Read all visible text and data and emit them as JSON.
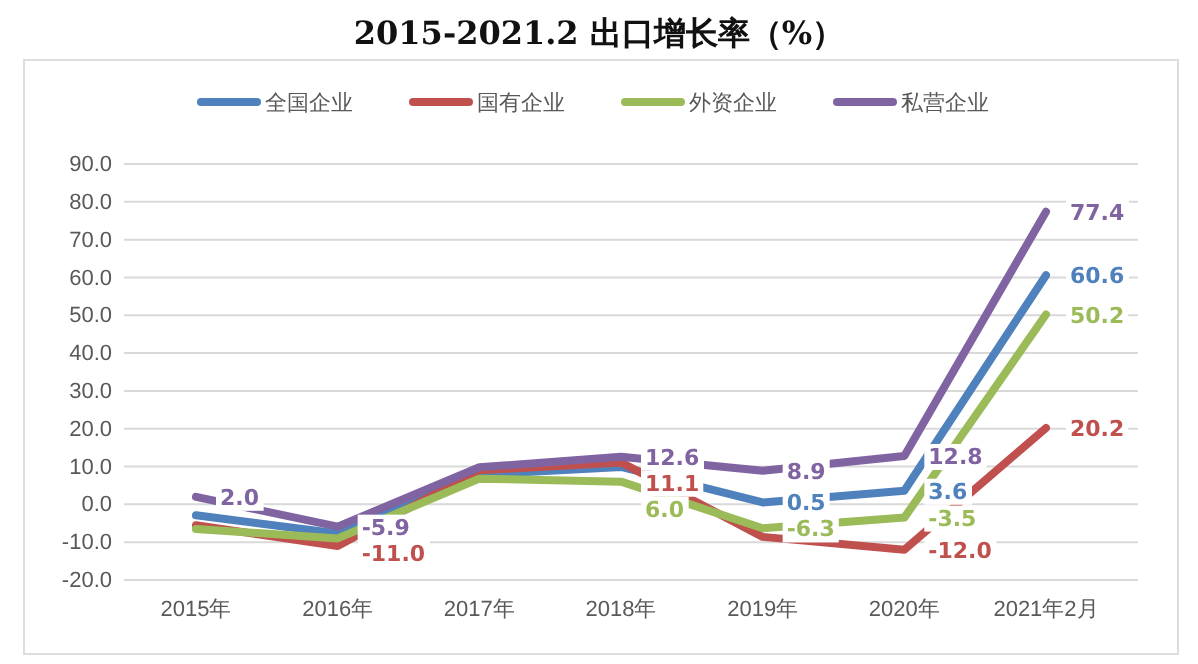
{
  "chart_data": {
    "type": "line",
    "title": "2015-2021.2 出口增长率（%）",
    "categories": [
      "2015年",
      "2016年",
      "2017年",
      "2018年",
      "2019年",
      "2020年",
      "2021年2月"
    ],
    "series": [
      {
        "name": "全国企业",
        "color": "#4f81bd",
        "values": [
          -2.9,
          -7.7,
          7.9,
          9.9,
          0.5,
          3.6,
          60.6
        ],
        "value_labels": [
          null,
          null,
          null,
          null,
          "0.5",
          "3.6",
          "60.6"
        ]
      },
      {
        "name": "国有企业",
        "color": "#c0504d",
        "values": [
          -5.5,
          -11.0,
          9.0,
          11.1,
          -8.6,
          -12.0,
          20.2
        ],
        "value_labels": [
          null,
          "-11.0",
          null,
          "11.1",
          null,
          "-12.0",
          "20.2"
        ]
      },
      {
        "name": "外资企业",
        "color": "#9bbb59",
        "values": [
          -6.5,
          -9.0,
          6.8,
          6.0,
          -6.3,
          -3.5,
          50.2
        ],
        "value_labels": [
          null,
          null,
          null,
          "6.0",
          "-6.3",
          "-3.5",
          "50.2"
        ]
      },
      {
        "name": "私营企业",
        "color": "#8064a2",
        "values": [
          2.0,
          -5.9,
          9.8,
          12.6,
          8.9,
          12.8,
          77.4
        ],
        "value_labels": [
          "2.0",
          "-5.9",
          null,
          "12.6",
          "8.9",
          "12.8",
          "77.4"
        ]
      }
    ],
    "ylim": [
      -20,
      90
    ],
    "yticks": [
      {
        "value": -20,
        "label": "-20.0"
      },
      {
        "value": -10,
        "label": "-10.0"
      },
      {
        "value": 0,
        "label": "0.0"
      },
      {
        "value": 10,
        "label": "10.0"
      },
      {
        "value": 20,
        "label": "20.0"
      },
      {
        "value": 30,
        "label": "30.0"
      },
      {
        "value": 40,
        "label": "40.0"
      },
      {
        "value": 50,
        "label": "50.0"
      },
      {
        "value": 60,
        "label": "60.0"
      },
      {
        "value": 70,
        "label": "70.0"
      },
      {
        "value": 80,
        "label": "80.0"
      },
      {
        "value": 90,
        "label": "90.0"
      }
    ],
    "grid": "y",
    "legend": "top",
    "marker": "none",
    "line_style": "solid"
  }
}
